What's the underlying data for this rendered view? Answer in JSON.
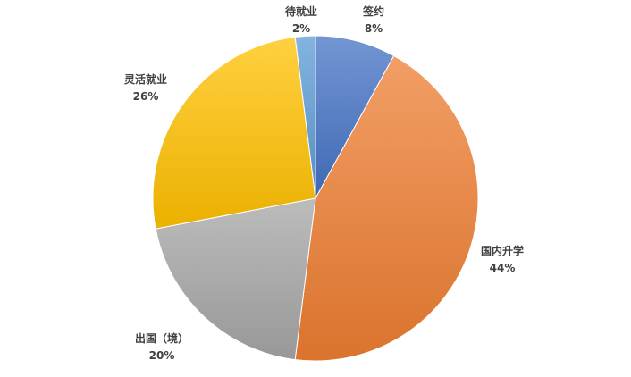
{
  "chart_data": {
    "type": "pie",
    "slices": [
      {
        "label": "签约",
        "value": 8,
        "value_label": "8%",
        "color": "#4472C4"
      },
      {
        "label": "国内升学",
        "value": 44,
        "value_label": "44%",
        "color": "#ED7D31"
      },
      {
        "label": "出国（境）",
        "value": 20,
        "value_label": "20%",
        "color": "#A5A5A5"
      },
      {
        "label": "灵活就业",
        "value": 26,
        "value_label": "26%",
        "color": "#FFC000"
      },
      {
        "label": "待就业",
        "value": 2,
        "value_label": "2%",
        "color": "#5B9BD5"
      }
    ],
    "start": "12 o'clock",
    "direction": "clockwise",
    "legend": "none",
    "data_labels": "outside, category name and percentage"
  }
}
